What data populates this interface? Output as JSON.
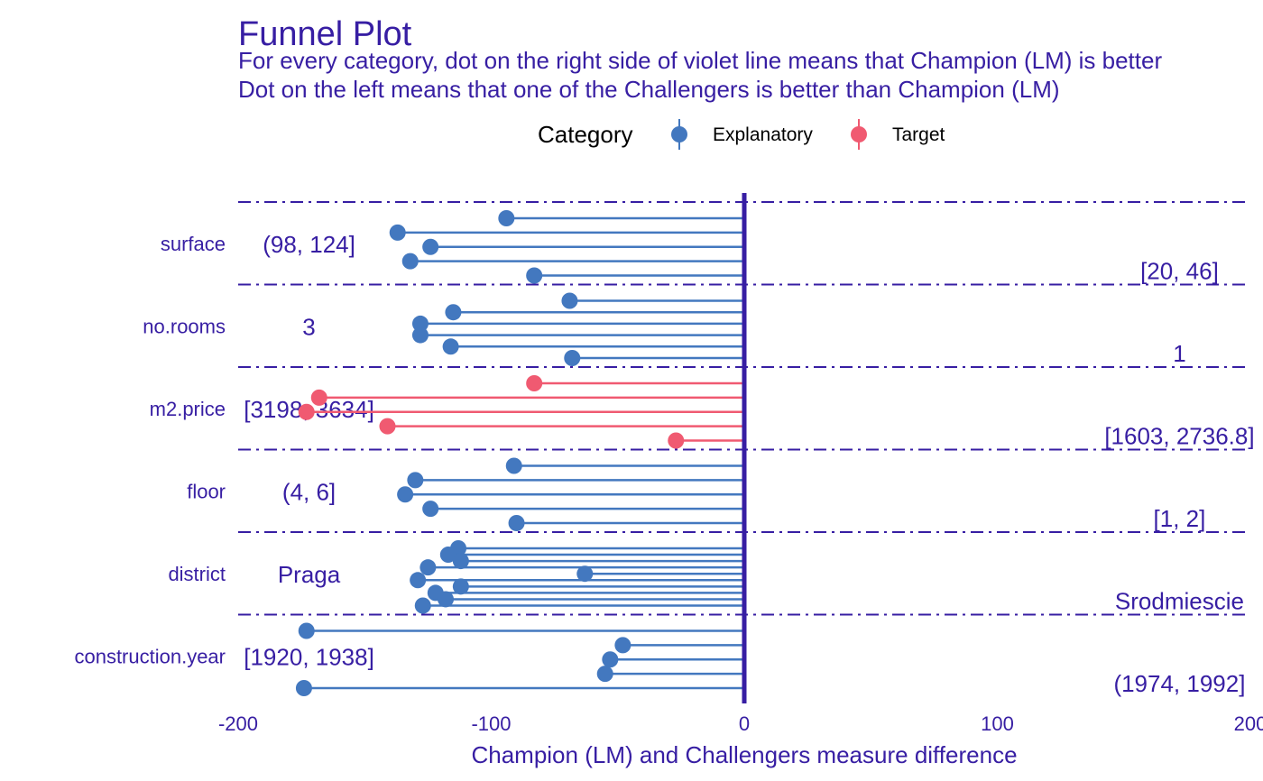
{
  "chart_data": {
    "type": "scatter",
    "title": "Funnel Plot",
    "subtitle": [
      "For every category, dot on the right side of violet line means that Champion (LM) is better",
      "Dot on the left means that one of the Challengers is better than Champion (LM)"
    ],
    "xlabel": "Champion (LM) and Challengers measure difference",
    "xlim": [
      -200,
      200
    ],
    "xticks": [
      -200,
      -100,
      0,
      100,
      200
    ],
    "xtick_labels": [
      "-200",
      "-100",
      "0",
      "100",
      "200"
    ],
    "reference_line": 0,
    "legend": {
      "title": "Category",
      "placement": "top",
      "entries": [
        {
          "label": "Explanatory",
          "color": "#4378bf"
        },
        {
          "label": "Target",
          "color": "#f05a71"
        }
      ]
    },
    "variables": [
      {
        "name": "surface",
        "category": "Explanatory",
        "values": [
          -94,
          -137,
          -124,
          -132,
          -83
        ],
        "left_label": "(98, 124]",
        "right_label": "[20, 46]"
      },
      {
        "name": "no.rooms",
        "category": "Explanatory",
        "values": [
          -69,
          -115,
          -128,
          -128,
          -116,
          -68
        ],
        "left_label": "3",
        "right_label": "1"
      },
      {
        "name": "m2.price",
        "category": "Target",
        "values": [
          -83,
          -168,
          -173,
          -141,
          -27
        ],
        "left_label": "[3198, 3634]",
        "right_label": "[1603, 2736.8]"
      },
      {
        "name": "floor",
        "category": "Explanatory",
        "values": [
          -91,
          -130,
          -134,
          -124,
          -90
        ],
        "left_label": "(4, 6]",
        "right_label": "[1, 2]"
      },
      {
        "name": "district",
        "category": "Explanatory",
        "values": [
          -113,
          -117,
          -112,
          -125,
          -63,
          -129,
          -112,
          -122,
          -118,
          -127
        ],
        "left_label": "Praga",
        "right_label": "Srodmiescie"
      },
      {
        "name": "construction.year",
        "category": "Explanatory",
        "values": [
          -173,
          -48,
          -53,
          -55,
          -174
        ],
        "left_label": "[1920, 1938]",
        "right_label": "(1974, 1992]"
      }
    ]
  }
}
